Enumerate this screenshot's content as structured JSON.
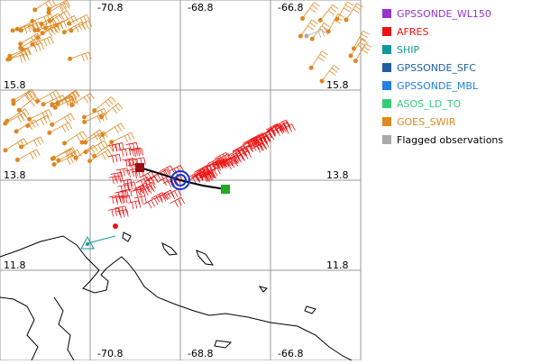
{
  "map": {
    "lon_labels": [
      "-70.8",
      "-68.8",
      "-66.8"
    ],
    "lat_labels": [
      "15.8",
      "13.8",
      "11.8"
    ]
  },
  "legend": [
    {
      "label": "GPSSONDE_WL150",
      "color": "#9933cc",
      "text_color": "#9933cc"
    },
    {
      "label": "AFRES",
      "color": "#ee1111",
      "text_color": "#ee1111"
    },
    {
      "label": "SHIP",
      "color": "#119999",
      "text_color": "#119999"
    },
    {
      "label": "GPSSONDE_SFC",
      "color": "#1f5fa0",
      "text_color": "#1f5fa0"
    },
    {
      "label": "GPSSONDE_MBL",
      "color": "#2080e0",
      "text_color": "#2080e0"
    },
    {
      "label": "ASOS_LD_TO",
      "color": "#33cc77",
      "text_color": "#33cc77"
    },
    {
      "label": "GOES_SWIR",
      "color": "#dd8822",
      "text_color": "#dd8822"
    },
    {
      "label": "Flagged observations",
      "color": "#aaaaaa",
      "text_color": "#000000"
    }
  ]
}
